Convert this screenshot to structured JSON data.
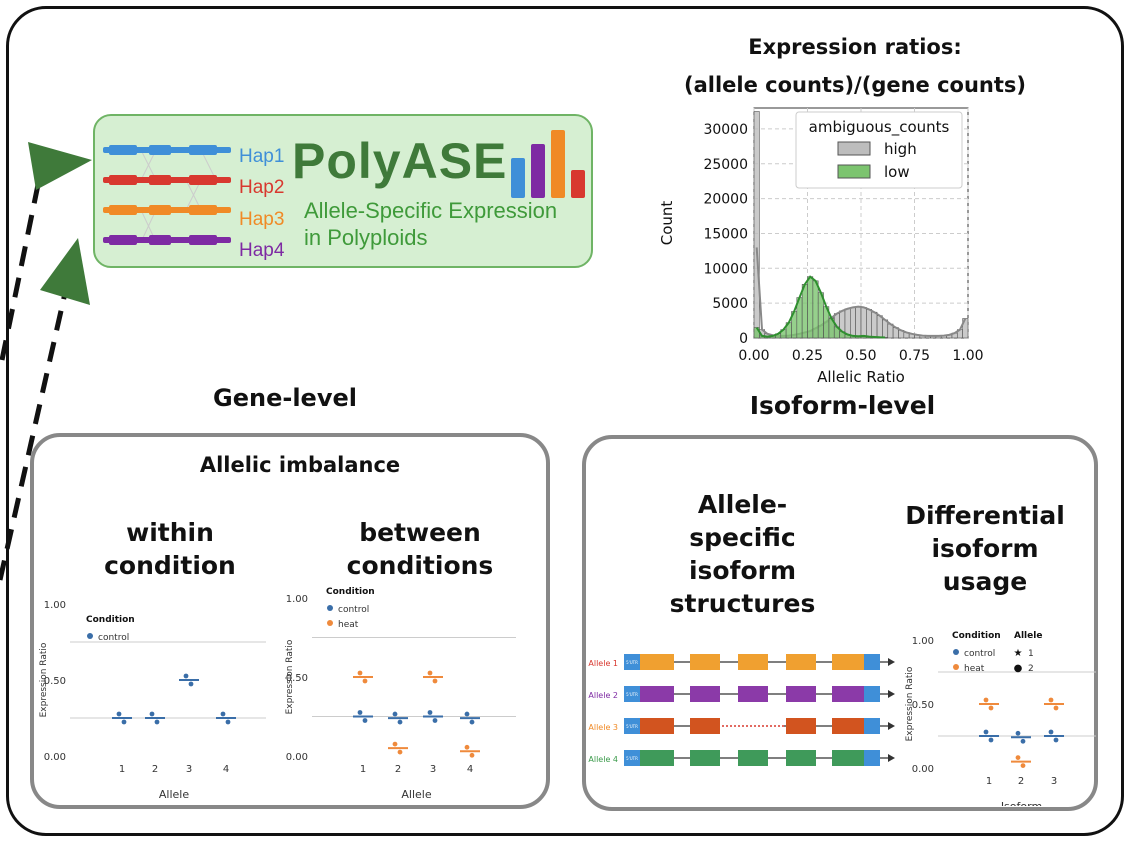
{
  "logo": {
    "title": "PolyASE",
    "subtitle_line1": "Allele-Specific Expression",
    "subtitle_line2": "in Polyploids",
    "haplotypes": [
      {
        "label": "Hap1",
        "color": "#3f8fd8"
      },
      {
        "label": "Hap2",
        "color": "#d8382f"
      },
      {
        "label": "Hap3",
        "color": "#f08a26"
      },
      {
        "label": "Hap4",
        "color": "#7e2aa3"
      }
    ],
    "bar_colors": [
      "#3f8fd8",
      "#7e2aa3",
      "#f08a26",
      "#d8382f"
    ]
  },
  "headings": {
    "expr_title_line1": "Expression ratios:",
    "expr_title_line2": "(allele counts)/(gene counts)",
    "gene_level": "Gene-level",
    "isoform_level": "Isoform-level",
    "allelic_imbalance": "Allelic imbalance",
    "within_line1": "within",
    "within_line2": "condition",
    "between_line1": "between",
    "between_line2": "conditions",
    "ase_line1": "Allele-",
    "ase_line2": "specific",
    "ase_line3": "isoform",
    "ase_line4": "structures",
    "diu_line1": "Differential",
    "diu_line2": "isoform",
    "diu_line3": "usage"
  },
  "chart_data": [
    {
      "type": "bar",
      "title": "Expression ratios: (allele counts)/(gene counts)",
      "xlabel": "Allelic Ratio",
      "ylabel": "Count",
      "xlim": [
        0.0,
        1.0
      ],
      "ylim": [
        0,
        33000
      ],
      "xticks": [
        "0.00",
        "0.25",
        "0.50",
        "0.75",
        "1.00"
      ],
      "yticks": [
        "0",
        "5000",
        "10000",
        "15000",
        "20000",
        "25000",
        "30000"
      ],
      "legend_title": "ambiguous_counts",
      "legend_position": "top-right",
      "grid": true,
      "series": [
        {
          "name": "high",
          "color": "#bdbdbd",
          "x": [
            0.0,
            0.025,
            0.05,
            0.075,
            0.1,
            0.125,
            0.15,
            0.175,
            0.2,
            0.225,
            0.25,
            0.275,
            0.3,
            0.325,
            0.35,
            0.375,
            0.4,
            0.425,
            0.45,
            0.475,
            0.5,
            0.525,
            0.55,
            0.575,
            0.6,
            0.625,
            0.65,
            0.675,
            0.7,
            0.725,
            0.75,
            0.775,
            0.8,
            0.825,
            0.85,
            0.875,
            0.9,
            0.925,
            0.95,
            0.975
          ],
          "values": [
            32500,
            1200,
            600,
            400,
            300,
            300,
            350,
            450,
            600,
            800,
            1000,
            1400,
            1800,
            2300,
            2900,
            3500,
            3900,
            4200,
            4400,
            4500,
            4400,
            4100,
            3700,
            3200,
            2600,
            2000,
            1500,
            1100,
            800,
            600,
            450,
            350,
            300,
            300,
            300,
            350,
            450,
            700,
            1200,
            2800
          ]
        },
        {
          "name": "low",
          "color": "#7cc46f",
          "x": [
            0.0,
            0.025,
            0.05,
            0.075,
            0.1,
            0.125,
            0.15,
            0.175,
            0.2,
            0.225,
            0.25,
            0.275,
            0.3,
            0.325,
            0.35,
            0.375,
            0.4,
            0.425,
            0.45,
            0.475,
            0.5,
            0.525,
            0.55,
            0.575,
            0.6
          ],
          "values": [
            1500,
            300,
            200,
            300,
            600,
            1200,
            2200,
            3800,
            5800,
            7700,
            8800,
            8200,
            6500,
            4500,
            2800,
            1600,
            900,
            500,
            300,
            250,
            300,
            200,
            150,
            100,
            80
          ]
        }
      ]
    },
    {
      "type": "scatter",
      "title": "within condition",
      "xlabel": "Allele",
      "ylabel": "Expression Ratio",
      "categories": [
        "1",
        "2",
        "3",
        "4"
      ],
      "yticks": [
        "0.00",
        "0.50",
        "1.00"
      ],
      "ylim": [
        0,
        1
      ],
      "legend_title": "Condition",
      "series": [
        {
          "name": "control",
          "color": "#3a6ea8",
          "values": [
            0.25,
            0.25,
            0.5,
            0.25
          ]
        }
      ]
    },
    {
      "type": "scatter",
      "title": "between conditions",
      "xlabel": "Allele",
      "ylabel": "Expression Ratio",
      "categories": [
        "1",
        "2",
        "3",
        "4"
      ],
      "yticks": [
        "0.00",
        "0.50",
        "1.00"
      ],
      "ylim": [
        0,
        1
      ],
      "legend_title": "Condition",
      "series": [
        {
          "name": "control",
          "color": "#3a6ea8",
          "values": [
            0.25,
            0.24,
            0.25,
            0.24
          ]
        },
        {
          "name": "heat",
          "color": "#ef8a3c",
          "values": [
            0.5,
            0.05,
            0.5,
            0.03
          ]
        }
      ]
    },
    {
      "type": "scatter",
      "title": "Differential isoform usage",
      "xlabel": "Isoform",
      "ylabel": "Expression Ratio",
      "categories": [
        "1",
        "2",
        "3"
      ],
      "yticks": [
        "0.00",
        "0.50",
        "1.00"
      ],
      "ylim": [
        0,
        1
      ],
      "legend_title_condition": "Condition",
      "legend_title_allele": "Allele",
      "alleles": [
        "1",
        "2"
      ],
      "series": [
        {
          "name": "control",
          "color": "#3a6ea8",
          "values": [
            0.25,
            0.24,
            0.25
          ]
        },
        {
          "name": "heat",
          "color": "#ef8a3c",
          "values": [
            0.5,
            0.05,
            0.5
          ]
        }
      ]
    }
  ],
  "isoform_structures": {
    "alleles": [
      {
        "label": "Allele 1",
        "label_color": "#d8382f",
        "exon_color": "#f0a030",
        "deleted": false
      },
      {
        "label": "Allele 2",
        "label_color": "#7e2aa3",
        "exon_color": "#8b3aa8",
        "deleted": false
      },
      {
        "label": "Allele 3",
        "label_color": "#f08a26",
        "exon_color": "#d2541f",
        "deleted": true
      },
      {
        "label": "Allele 4",
        "label_color": "#3a9a4a",
        "exon_color": "#3f9a5a",
        "deleted": false
      }
    ],
    "utr_label": "5'UTR",
    "utr_color": "#3f8fd8"
  }
}
